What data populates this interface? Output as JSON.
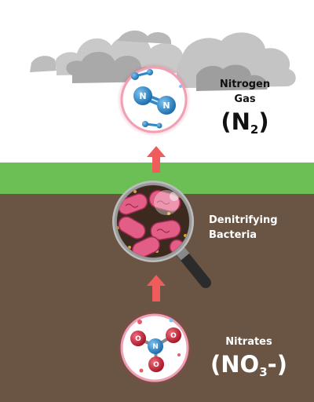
{
  "nitrogen_gas": {
    "name_line1": "Nitrogen",
    "name_line2": "Gas",
    "formula_main": "(N",
    "formula_sub": "2",
    "formula_end": ")"
  },
  "bacteria": {
    "name_line1": "Denitrifying",
    "name_line2": "Bacteria"
  },
  "nitrates": {
    "name": "Nitrates",
    "formula_main": "(NO",
    "formula_sub": "3",
    "formula_end": "-)"
  },
  "atoms": {
    "nitrogen": "N",
    "oxygen": "O"
  },
  "colors": {
    "sky": "#ffffff",
    "cloud": "#bdbdbd",
    "grass": "#6cbf55",
    "soil": "#6a5443",
    "arrow": "#f05b5b",
    "glow": "#e8325a",
    "nitrogen_atom": "#2f86c8",
    "oxygen_atom": "#c7283a",
    "bacteria": "#e25e86",
    "lens_rim": "#9a9a9a",
    "handle": "#2b2b2b"
  },
  "icons": [
    "cloud-icon",
    "magnifying-glass-icon",
    "up-arrow-icon",
    "nitrogen-molecule-icon",
    "nitrate-molecule-icon"
  ]
}
